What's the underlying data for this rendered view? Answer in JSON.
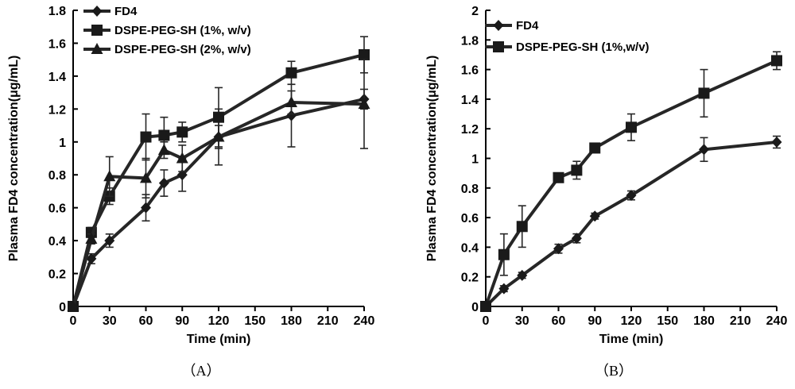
{
  "chart_data": [
    {
      "type": "line",
      "panel_label": "（A）",
      "xlabel": "Time (min)",
      "ylabel": "Plasma FD4 concentration(μg/mL)",
      "xlim": [
        0,
        240
      ],
      "ylim": [
        0,
        1.8
      ],
      "x_ticks": [
        0,
        30,
        60,
        90,
        120,
        150,
        180,
        210,
        240
      ],
      "y_ticks": [
        0,
        0.2,
        0.4,
        0.6,
        0.8,
        1,
        1.2,
        1.4,
        1.6,
        1.8
      ],
      "legend_position": "top-left",
      "series": [
        {
          "name": "FD4",
          "marker": "diamond",
          "x": [
            0,
            15,
            30,
            60,
            75,
            90,
            120,
            180,
            240
          ],
          "y": [
            0,
            0.29,
            0.4,
            0.6,
            0.75,
            0.8,
            1.03,
            1.16,
            1.26
          ],
          "err": [
            0,
            0.03,
            0.04,
            0.08,
            0.08,
            0.1,
            0.17,
            0.19,
            0.06
          ]
        },
        {
          "name": "DSPE-PEG-SH (1%, w/v)",
          "marker": "square",
          "x": [
            0,
            15,
            30,
            60,
            75,
            90,
            120,
            180,
            240
          ],
          "y": [
            0,
            0.45,
            0.67,
            1.03,
            1.04,
            1.06,
            1.15,
            1.42,
            1.53
          ],
          "err": [
            0,
            0.03,
            0.05,
            0.14,
            0.11,
            0.06,
            0.18,
            0.07,
            0.11
          ]
        },
        {
          "name": "DSPE-PEG-SH (2%, w/v)",
          "marker": "triangle",
          "x": [
            0,
            15,
            30,
            60,
            75,
            90,
            120,
            180,
            240
          ],
          "y": [
            0,
            0.41,
            0.79,
            0.78,
            0.95,
            0.9,
            1.03,
            1.24,
            1.23
          ],
          "err": [
            0,
            0.03,
            0.12,
            0.12,
            0.05,
            0.08,
            0.07,
            0.07,
            0.27
          ]
        }
      ]
    },
    {
      "type": "line",
      "panel_label": "（B）",
      "xlabel": "Time (min)",
      "ylabel": "Plasma FD4 concentration(μg/mL)",
      "xlim": [
        0,
        240
      ],
      "ylim": [
        0,
        2
      ],
      "x_ticks": [
        0,
        30,
        60,
        90,
        120,
        150,
        180,
        210,
        240
      ],
      "y_ticks": [
        0,
        0.2,
        0.4,
        0.6,
        0.8,
        1,
        1.2,
        1.4,
        1.6,
        1.8,
        2
      ],
      "legend_position": "top-left",
      "series": [
        {
          "name": "FD4",
          "marker": "diamond",
          "x": [
            0,
            15,
            30,
            60,
            75,
            90,
            120,
            180,
            240
          ],
          "y": [
            0,
            0.12,
            0.21,
            0.39,
            0.46,
            0.61,
            0.75,
            1.06,
            1.11
          ],
          "err": [
            0,
            0.02,
            0.02,
            0.03,
            0.03,
            0.02,
            0.03,
            0.08,
            0.04
          ]
        },
        {
          "name": "DSPE-PEG-SH (1%,w/v)",
          "marker": "square",
          "x": [
            0,
            15,
            30,
            60,
            75,
            90,
            120,
            180,
            240
          ],
          "y": [
            0,
            0.35,
            0.54,
            0.87,
            0.92,
            1.07,
            1.21,
            1.44,
            1.66
          ],
          "err": [
            0,
            0.14,
            0.14,
            0.03,
            0.06,
            0.03,
            0.09,
            0.16,
            0.06
          ]
        }
      ]
    }
  ]
}
